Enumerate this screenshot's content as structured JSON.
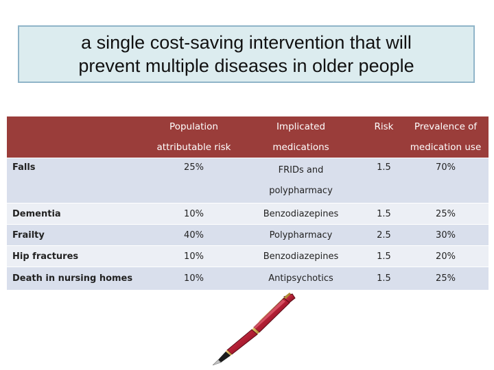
{
  "slide": {
    "title_line1": "a single cost-saving intervention that will",
    "title_line2": "prevent multiple diseases in older people"
  },
  "table": {
    "headers": {
      "h1_line1": "Population",
      "h1_line2": "attributable risk",
      "h2_line1": "Implicated",
      "h2_line2": "medications",
      "h3_line1": "Risk",
      "h4_line1": "Prevalence of",
      "h4_line2": "medication use"
    },
    "rows": [
      {
        "condition": "Falls",
        "par": "25%",
        "med_line1": "FRIDs and",
        "med_line2": "polypharmacy",
        "risk": "1.5",
        "prevalence": "70%"
      },
      {
        "condition": "Dementia",
        "par": "10%",
        "med": "Benzodiazepines",
        "risk": "1.5",
        "prevalence": "25%"
      },
      {
        "condition": "Frailty",
        "par": "40%",
        "med": "Polypharmacy",
        "risk": "2.5",
        "prevalence": "30%"
      },
      {
        "condition": "Hip fractures",
        "par": "10%",
        "med": "Benzodiazepines",
        "risk": "1.5",
        "prevalence": "20%"
      },
      {
        "condition": "Death in nursing homes",
        "par": "10%",
        "med": "Antipsychotics",
        "risk": "1.5",
        "prevalence": "25%"
      }
    ]
  },
  "colors": {
    "header_bg": "#9a3d3a",
    "row_dark": "#d9dfec",
    "row_light": "#eceff5",
    "title_bg": "#dcecef",
    "title_border": "#8fb4c8"
  },
  "decoration": {
    "pen_icon": "fountain-pen-icon"
  }
}
